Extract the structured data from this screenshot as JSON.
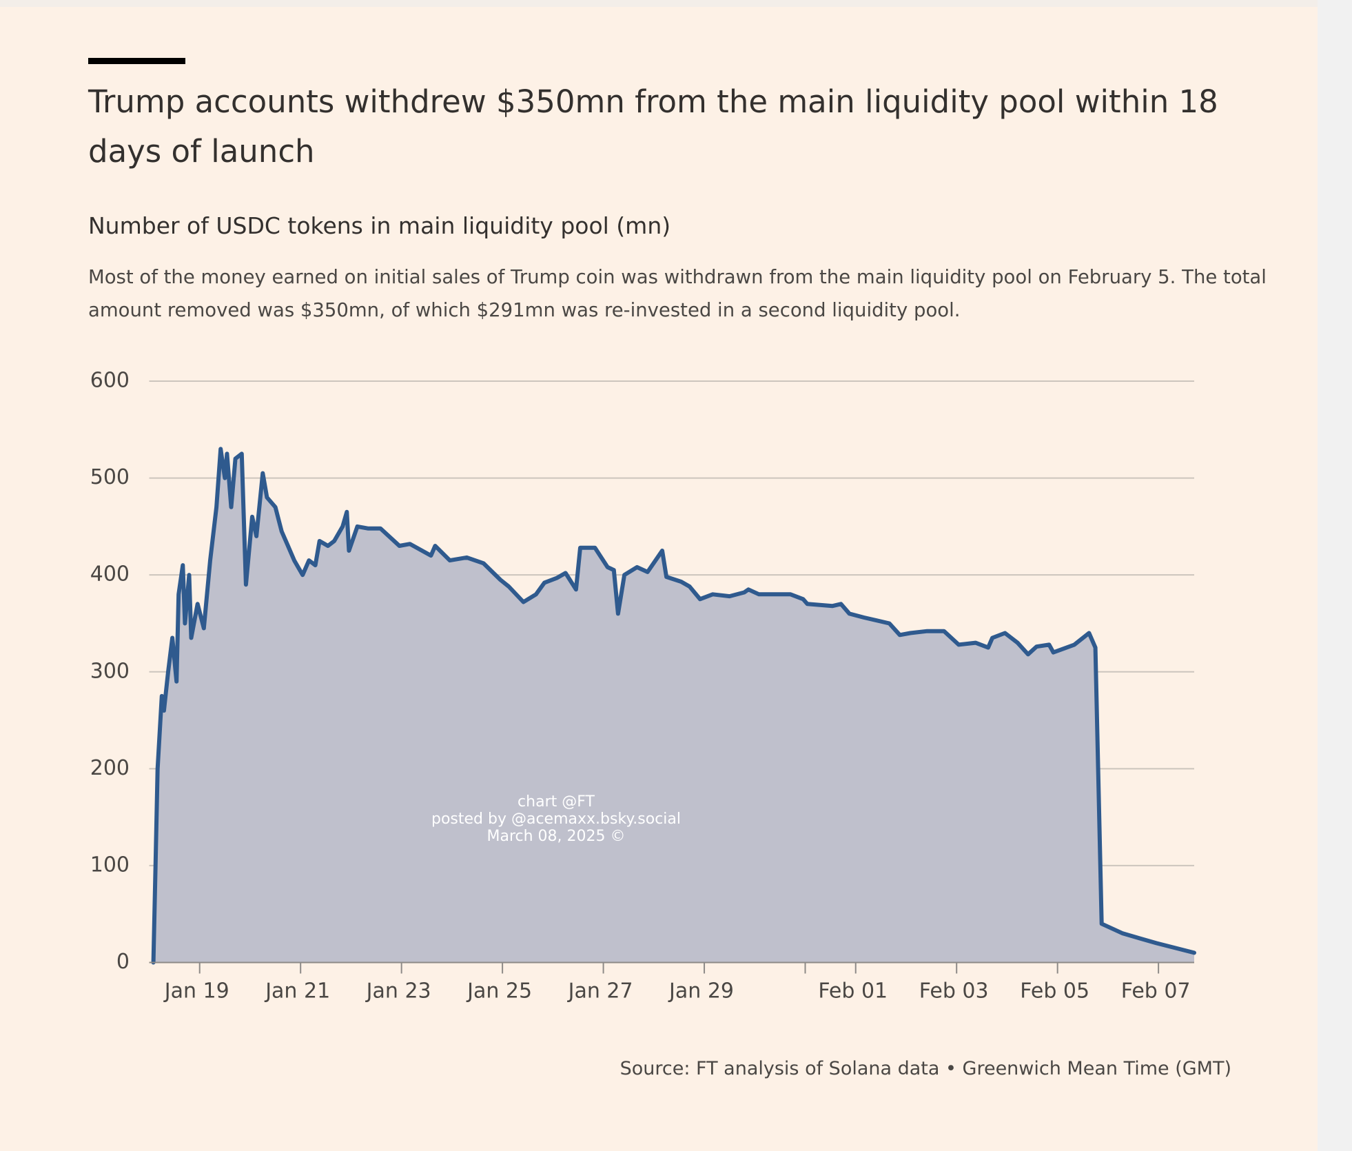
{
  "chart_data": {
    "type": "area",
    "title": "Trump accounts withdrew $350mn from the main liquidity pool within 18 days of launch",
    "subtitle": "Number of USDC tokens in main liquidity pool (mn)",
    "description": "Most of the money earned on initial sales of Trump coin was withdrawn from the main liquidity pool on February 5. The total amount removed was $350mn, of which $291mn was re-invested in a second liquidity pool.",
    "source": "Source: FT analysis of Solana data • Greenwich Mean Time (GMT)",
    "watermark": [
      "chart @FT",
      "posted by @acemaxx.bsky.social",
      "March 08, 2025 ©"
    ],
    "color": "#2f5a8e",
    "fill_color": "#bfc0cc",
    "grid": true,
    "xlim": [
      "Jan 18 00:00",
      "Feb 07 17:00"
    ],
    "xticks": [
      "Jan 19",
      "Jan 21",
      "Jan 23",
      "Jan 25",
      "Jan 27",
      "Jan 29",
      {
        "value": "Jan 31",
        "label": null
      },
      "Feb 01",
      "Feb 03",
      "Feb 05",
      "Feb 07"
    ],
    "ylim": [
      0,
      600
    ],
    "yticks": [
      0,
      100,
      200,
      300,
      400,
      500,
      600
    ],
    "x": [
      "Jan 18 02:00",
      "Jan 18 03:00",
      "Jan 18 04:00",
      "Jan 18 06:00",
      "Jan 18 07:00",
      "Jan 18 09:00",
      "Jan 18 11:00",
      "Jan 18 13:00",
      "Jan 18 14:00",
      "Jan 18 16:00",
      "Jan 18 17:00",
      "Jan 18 19:00",
      "Jan 18 20:00",
      "Jan 18 23:00",
      "Jan 19 02:00",
      "Jan 19 05:00",
      "Jan 19 08:00",
      "Jan 19 10:00",
      "Jan 19 12:00",
      "Jan 19 13:00",
      "Jan 19 15:00",
      "Jan 19 17:00",
      "Jan 19 20:00",
      "Jan 19 22:00",
      "Jan 20 01:00",
      "Jan 20 03:00",
      "Jan 20 06:00",
      "Jan 20 08:00",
      "Jan 20 12:00",
      "Jan 20 15:00",
      "Jan 20 18:00",
      "Jan 20 21:00",
      "Jan 21 01:00",
      "Jan 21 04:00",
      "Jan 21 07:00",
      "Jan 21 09:00",
      "Jan 21 13:00",
      "Jan 21 16:00",
      "Jan 21 20:00",
      "Jan 21 22:00",
      "Jan 21 23:00",
      "Jan 22 03:00",
      "Jan 22 08:00",
      "Jan 22 14:00",
      "Jan 22 23:00",
      "Jan 23 04:00",
      "Jan 23 14:00",
      "Jan 23 16:00",
      "Jan 23 23:00",
      "Jan 24 07:00",
      "Jan 24 15:00",
      "Jan 24 23:00",
      "Jan 25 03:00",
      "Jan 25 10:00",
      "Jan 25 16:00",
      "Jan 25 20:00",
      "Jan 26 02:00",
      "Jan 26 06:00",
      "Jan 26 11:00",
      "Jan 26 13:00",
      "Jan 26 20:00",
      "Jan 27 02:00",
      "Jan 27 05:00",
      "Jan 27 07:00",
      "Jan 27 10:00",
      "Jan 27 16:00",
      "Jan 27 21:00",
      "Jan 28 04:00",
      "Jan 28 06:00",
      "Jan 28 13:00",
      "Jan 28 17:00",
      "Jan 28 22:00",
      "Jan 29 04:00",
      "Jan 29 12:00",
      "Jan 29 19:00",
      "Jan 29 21:00",
      "Jan 30 02:00",
      "Jan 30 17:00",
      "Jan 30 23:00",
      "Jan 31 01:00",
      "Jan 31 13:00",
      "Jan 31 17:00",
      "Jan 31 21:00",
      "Feb 01 04:00",
      "Feb 01 16:00",
      "Feb 01 21:00",
      "Feb 02 02:00",
      "Feb 02 10:00",
      "Feb 02 18:00",
      "Feb 03 01:00",
      "Feb 03 09:00",
      "Feb 03 15:00",
      "Feb 03 17:00",
      "Feb 03 23:00",
      "Feb 04 05:00",
      "Feb 04 10:00",
      "Feb 04 14:00",
      "Feb 04 20:00",
      "Feb 04 22:00",
      "Feb 05 08:00",
      "Feb 05 15:00",
      "Feb 05 18:00",
      "Feb 05 21:00",
      "Feb 06 07:00",
      "Feb 06 23:00",
      "Feb 07 17:00"
    ],
    "values": [
      0,
      100,
      200,
      275,
      260,
      300,
      335,
      290,
      380,
      410,
      350,
      400,
      335,
      370,
      345,
      415,
      470,
      530,
      500,
      525,
      470,
      520,
      525,
      390,
      460,
      440,
      505,
      480,
      470,
      445,
      430,
      415,
      400,
      415,
      410,
      435,
      430,
      435,
      450,
      465,
      425,
      450,
      448,
      448,
      430,
      432,
      420,
      430,
      415,
      418,
      412,
      395,
      388,
      372,
      380,
      392,
      397,
      402,
      385,
      428,
      428,
      408,
      405,
      360,
      400,
      408,
      403,
      425,
      398,
      393,
      388,
      375,
      380,
      378,
      382,
      385,
      380,
      380,
      375,
      370,
      368,
      370,
      360,
      356,
      350,
      338,
      340,
      342,
      342,
      328,
      330,
      325,
      335,
      340,
      330,
      318,
      326,
      328,
      320,
      328,
      340,
      325,
      40,
      30,
      20,
      10
    ]
  }
}
